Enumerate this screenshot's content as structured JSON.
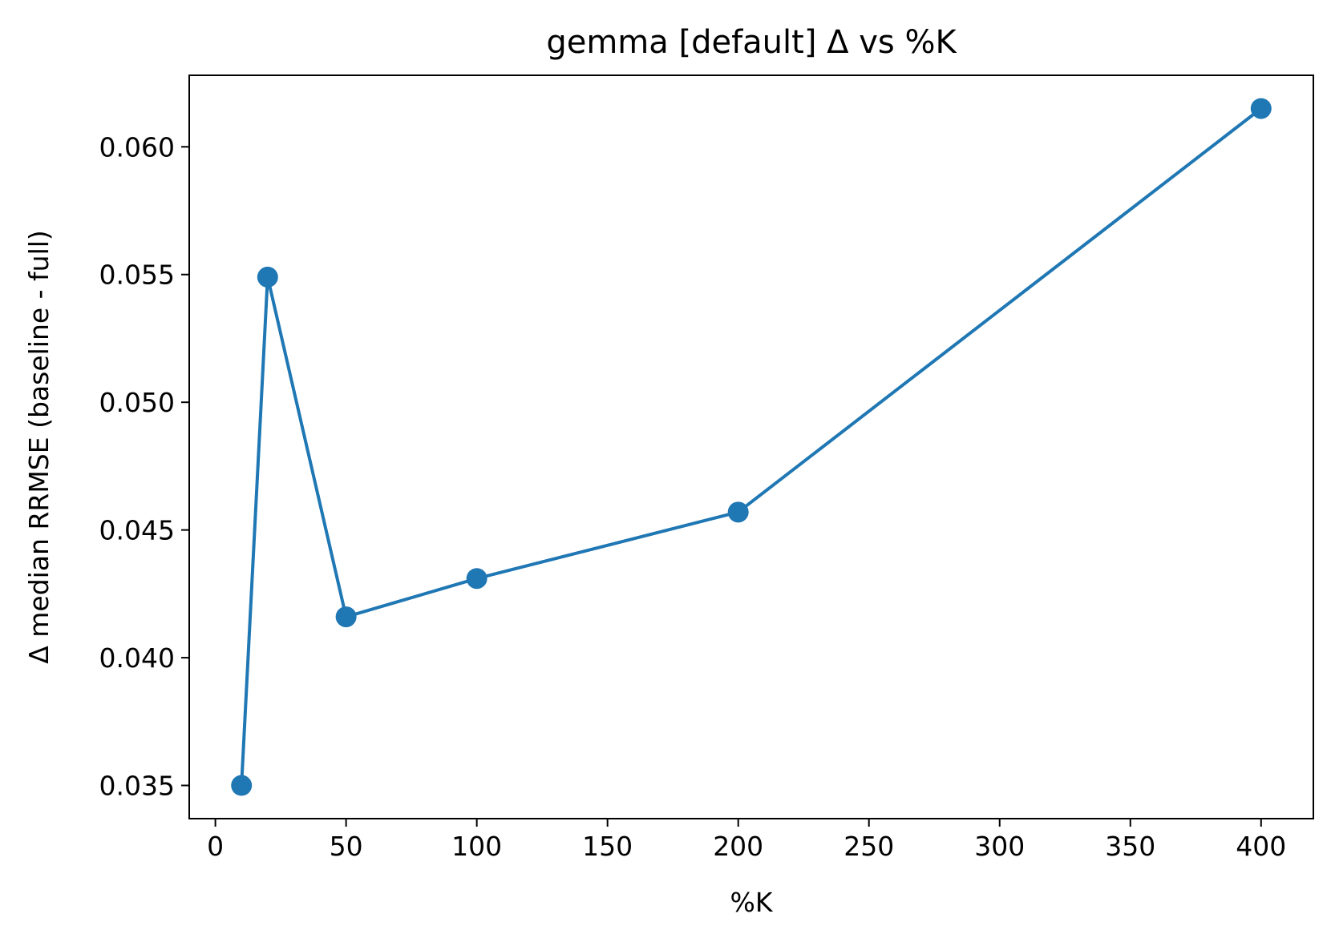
{
  "chart_data": {
    "type": "line",
    "title": "gemma [default] Δ vs %K",
    "xlabel": "%K",
    "ylabel": "Δ median RRMSE (baseline - full)",
    "xlim": [
      -10,
      420
    ],
    "ylim": [
      0.0337,
      0.0628
    ],
    "xticks": [
      0,
      50,
      100,
      150,
      200,
      250,
      300,
      350,
      400
    ],
    "xtick_labels": [
      "0",
      "50",
      "100",
      "150",
      "200",
      "250",
      "300",
      "350",
      "400"
    ],
    "yticks": [
      0.035,
      0.04,
      0.045,
      0.05,
      0.055,
      0.06
    ],
    "ytick_labels": [
      "0.035",
      "0.040",
      "0.045",
      "0.050",
      "0.055",
      "0.060"
    ],
    "grid": false,
    "legend": "none",
    "series": [
      {
        "x": [
          10,
          20,
          50,
          100,
          200,
          400
        ],
        "y": [
          0.035,
          0.0549,
          0.0416,
          0.0431,
          0.0457,
          0.0615
        ],
        "color": "#1f77b4",
        "marker": "circle"
      }
    ]
  }
}
